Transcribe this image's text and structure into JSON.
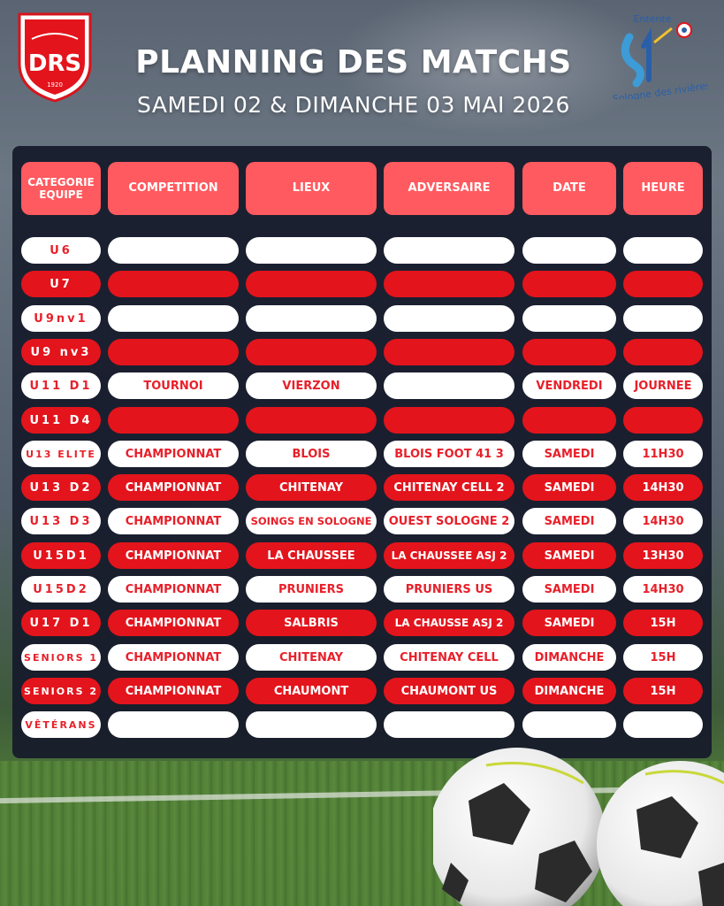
{
  "header": {
    "title": "PLANNING DES MATCHS",
    "subtitle": "SAMEDI 02 & DIMANCHE 03 MAI 2026",
    "logo_left": {
      "text": "DRS",
      "year": "1920"
    },
    "logo_right": {
      "top_text": "Entente",
      "bottom_text": "Sologne des rivières"
    }
  },
  "table": {
    "headers": [
      "CATEGORIE\nEQUIPE",
      "COMPETITION",
      "LIEUX",
      "ADVERSAIRE",
      "DATE",
      "HEURE"
    ],
    "rows": [
      {
        "style": "white",
        "category": "U6",
        "competition": "",
        "lieux": "",
        "adversaire": "",
        "date": "",
        "heure": ""
      },
      {
        "style": "red",
        "category": "U7",
        "competition": "",
        "lieux": "",
        "adversaire": "",
        "date": "",
        "heure": ""
      },
      {
        "style": "white",
        "category": "U9nv1",
        "competition": "",
        "lieux": "",
        "adversaire": "",
        "date": "",
        "heure": ""
      },
      {
        "style": "red",
        "category": "U9 nv3",
        "competition": "",
        "lieux": "",
        "adversaire": "",
        "date": "",
        "heure": ""
      },
      {
        "style": "white",
        "category": "U11 D1",
        "competition": "TOURNOI",
        "lieux": "VIERZON",
        "adversaire": "",
        "date": "VENDREDI",
        "heure": "JOURNEE"
      },
      {
        "style": "red",
        "category": "U11 D4",
        "competition": "",
        "lieux": "",
        "adversaire": "",
        "date": "",
        "heure": ""
      },
      {
        "style": "white",
        "category": "U13 ELITE",
        "competition": "CHAMPIONNAT",
        "lieux": "BLOIS",
        "adversaire": "BLOIS FOOT 41 3",
        "date": "SAMEDI",
        "heure": "11H30"
      },
      {
        "style": "red",
        "category": "U13 D2",
        "competition": "CHAMPIONNAT",
        "lieux": "CHITENAY",
        "adversaire": "CHITENAY CELL 2",
        "date": "SAMEDI",
        "heure": "14H30"
      },
      {
        "style": "white",
        "category": "U13 D3",
        "competition": "CHAMPIONNAT",
        "lieux": "SOINGS EN SOLOGNE",
        "adversaire": "OUEST SOLOGNE 2",
        "date": "SAMEDI",
        "heure": "14H30"
      },
      {
        "style": "red",
        "category": "U15D1",
        "competition": "CHAMPIONNAT",
        "lieux": "LA CHAUSSEE",
        "adversaire": "LA CHAUSSEE ASJ 2",
        "date": "SAMEDI",
        "heure": "13H30"
      },
      {
        "style": "white",
        "category": "U15D2",
        "competition": "CHAMPIONNAT",
        "lieux": "PRUNIERS",
        "adversaire": "PRUNIERS US",
        "date": "SAMEDI",
        "heure": "14H30"
      },
      {
        "style": "red",
        "category": "U17 D1",
        "competition": "CHAMPIONNAT",
        "lieux": "SALBRIS",
        "adversaire": "LA CHAUSSE ASJ 2",
        "date": "SAMEDI",
        "heure": "15H"
      },
      {
        "style": "white",
        "category": "SENIORS 1",
        "competition": "CHAMPIONNAT",
        "lieux": "CHITENAY",
        "adversaire": "CHITENAY CELL",
        "date": "DIMANCHE",
        "heure": "15H"
      },
      {
        "style": "red",
        "category": "SENIORS 2",
        "competition": "CHAMPIONNAT",
        "lieux": "CHAUMONT",
        "adversaire": "CHAUMONT US",
        "date": "DIMANCHE",
        "heure": "15H"
      },
      {
        "style": "white",
        "category": "VÊTÉRANS",
        "competition": "",
        "lieux": "",
        "adversaire": "",
        "date": "",
        "heure": ""
      }
    ]
  },
  "colors": {
    "accent_red": "#e3141c",
    "header_red": "#ff5a5f",
    "panel": "#161a2a"
  },
  "icons": [
    "drs-club-logo",
    "entente-sologne-logo",
    "football-ball"
  ]
}
